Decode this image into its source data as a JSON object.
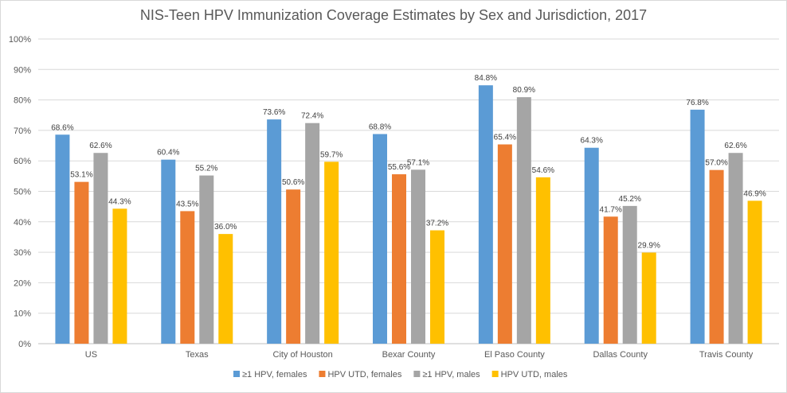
{
  "chart_data": {
    "type": "bar",
    "title": "NIS-Teen HPV Immunization Coverage Estimates by Sex and Jurisdiction, 2017",
    "xlabel": "",
    "ylabel": "",
    "ylim": [
      0,
      100
    ],
    "y_tick_values": [
      0,
      10,
      20,
      30,
      40,
      50,
      60,
      70,
      80,
      90,
      100
    ],
    "y_tick_suffix": "%",
    "grid": true,
    "legend_position": "bottom",
    "categories": [
      "US",
      "Texas",
      "City of Houston",
      "Bexar County",
      "El Paso County",
      "Dallas County",
      "Travis County"
    ],
    "series": [
      {
        "name": "≥1 HPV, females",
        "color": "#5b9bd5",
        "values": [
          68.6,
          60.4,
          73.6,
          68.8,
          84.8,
          64.3,
          76.8
        ],
        "labels": [
          "68.6%",
          "60.4%",
          "73.6%",
          "68.8%",
          "84.8%",
          "64.3%",
          "76.8%"
        ]
      },
      {
        "name": "HPV UTD, females",
        "color": "#ed7d31",
        "values": [
          53.1,
          43.5,
          50.6,
          55.6,
          65.4,
          41.7,
          57.0
        ],
        "labels": [
          "53.1%",
          "43.5%",
          "50.6%",
          "55.6%",
          "65.4%",
          "41.7%",
          "57.0%"
        ]
      },
      {
        "name": "≥1 HPV, males",
        "color": "#a5a5a5",
        "values": [
          62.6,
          55.2,
          72.4,
          57.1,
          80.9,
          45.2,
          62.6
        ],
        "labels": [
          "62.6%",
          "55.2%",
          "72.4%",
          "57.1%",
          "80.9%",
          "45.2%",
          "62.6%"
        ]
      },
      {
        "name": "HPV UTD, males",
        "color": "#ffc000",
        "values": [
          44.3,
          36.0,
          59.7,
          37.2,
          54.6,
          29.9,
          46.9
        ],
        "labels": [
          "44.3%",
          "36.0%",
          "59.7%",
          "37.2%",
          "54.6%",
          "29.9%",
          "46.9%"
        ]
      }
    ]
  }
}
